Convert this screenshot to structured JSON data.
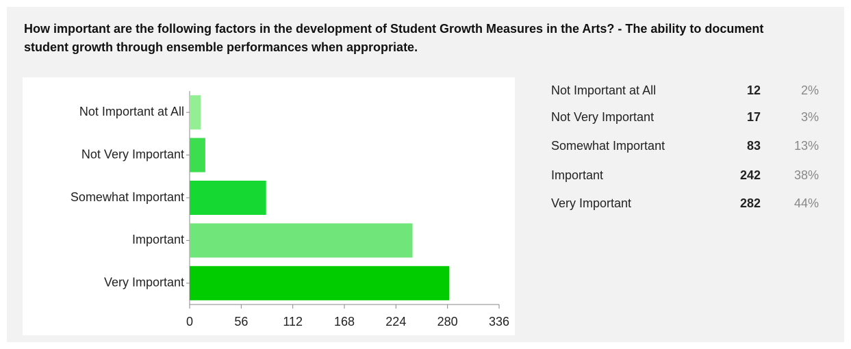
{
  "chart_data": {
    "type": "bar",
    "orientation": "horizontal",
    "title": "How important are the following factors in the development of Student Growth Measures in the Arts? - The ability to document student growth through ensemble performances when appropriate.",
    "categories": [
      "Not Important at All",
      "Not Very Important",
      "Somewhat Important",
      "Important",
      "Very Important"
    ],
    "values": [
      12,
      17,
      83,
      242,
      282
    ],
    "colors": [
      "#94ee94",
      "#3ddd50",
      "#16d832",
      "#6fe57a",
      "#00cc00"
    ],
    "percentages": [
      {
        "value": 2,
        "label": "2%"
      },
      {
        "value": 3,
        "label": "3%"
      },
      {
        "value": 13,
        "label": "13%"
      },
      {
        "value": 38,
        "label": "38%"
      },
      {
        "value": 44,
        "label": "44%"
      }
    ],
    "xlim": [
      0,
      336
    ],
    "xticks": [
      0,
      56,
      112,
      168,
      224,
      280,
      336
    ]
  }
}
